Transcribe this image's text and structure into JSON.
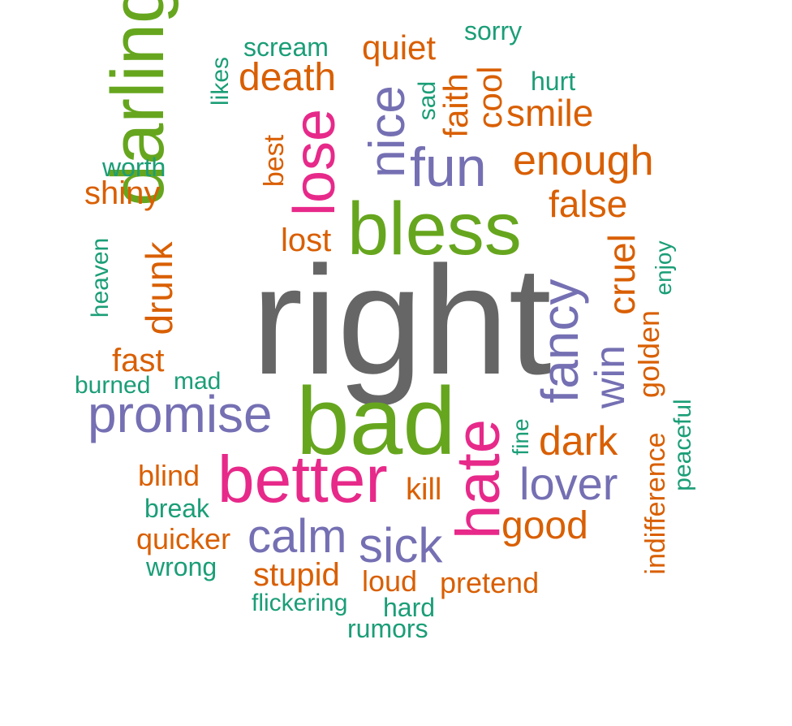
{
  "colors": {
    "gray": "#666666",
    "green": "#66A61E",
    "pink": "#E7298A",
    "purple": "#7570B3",
    "orange": "#D95F02",
    "teal": "#1B9E77"
  },
  "words": {
    "right": "right",
    "bless": "bless",
    "bad": "bad",
    "better": "better",
    "darling": "darling",
    "promise": "promise",
    "lose": "lose",
    "hate": "hate",
    "nice": "nice",
    "fun": "fun",
    "fancy": "fancy",
    "calm": "calm",
    "sick": "sick",
    "lover": "lover",
    "win": "win",
    "enough": "enough",
    "death": "death",
    "smile": "smile",
    "false": "false",
    "dark": "dark",
    "good": "good",
    "cruel": "cruel",
    "drunk": "drunk",
    "quiet": "quiet",
    "cool": "cool",
    "faith": "faith",
    "shiny": "shiny",
    "lost": "lost",
    "fast": "fast",
    "stupid": "stupid",
    "kill": "kill",
    "golden": "golden",
    "indifference": "indifference",
    "blind": "blind",
    "quicker": "quicker",
    "loud": "loud",
    "pretend": "pretend",
    "best": "best",
    "scream": "scream",
    "sorry": "sorry",
    "hurt": "hurt",
    "sad": "sad",
    "likes": "likes",
    "worth": "worth",
    "heaven": "heaven",
    "burned": "burned",
    "mad": "mad",
    "enjoy": "enjoy",
    "peaceful": "peaceful",
    "fine": "fine",
    "break": "break",
    "wrong": "wrong",
    "flickering": "flickering",
    "hard": "hard",
    "rumors": "rumors"
  }
}
